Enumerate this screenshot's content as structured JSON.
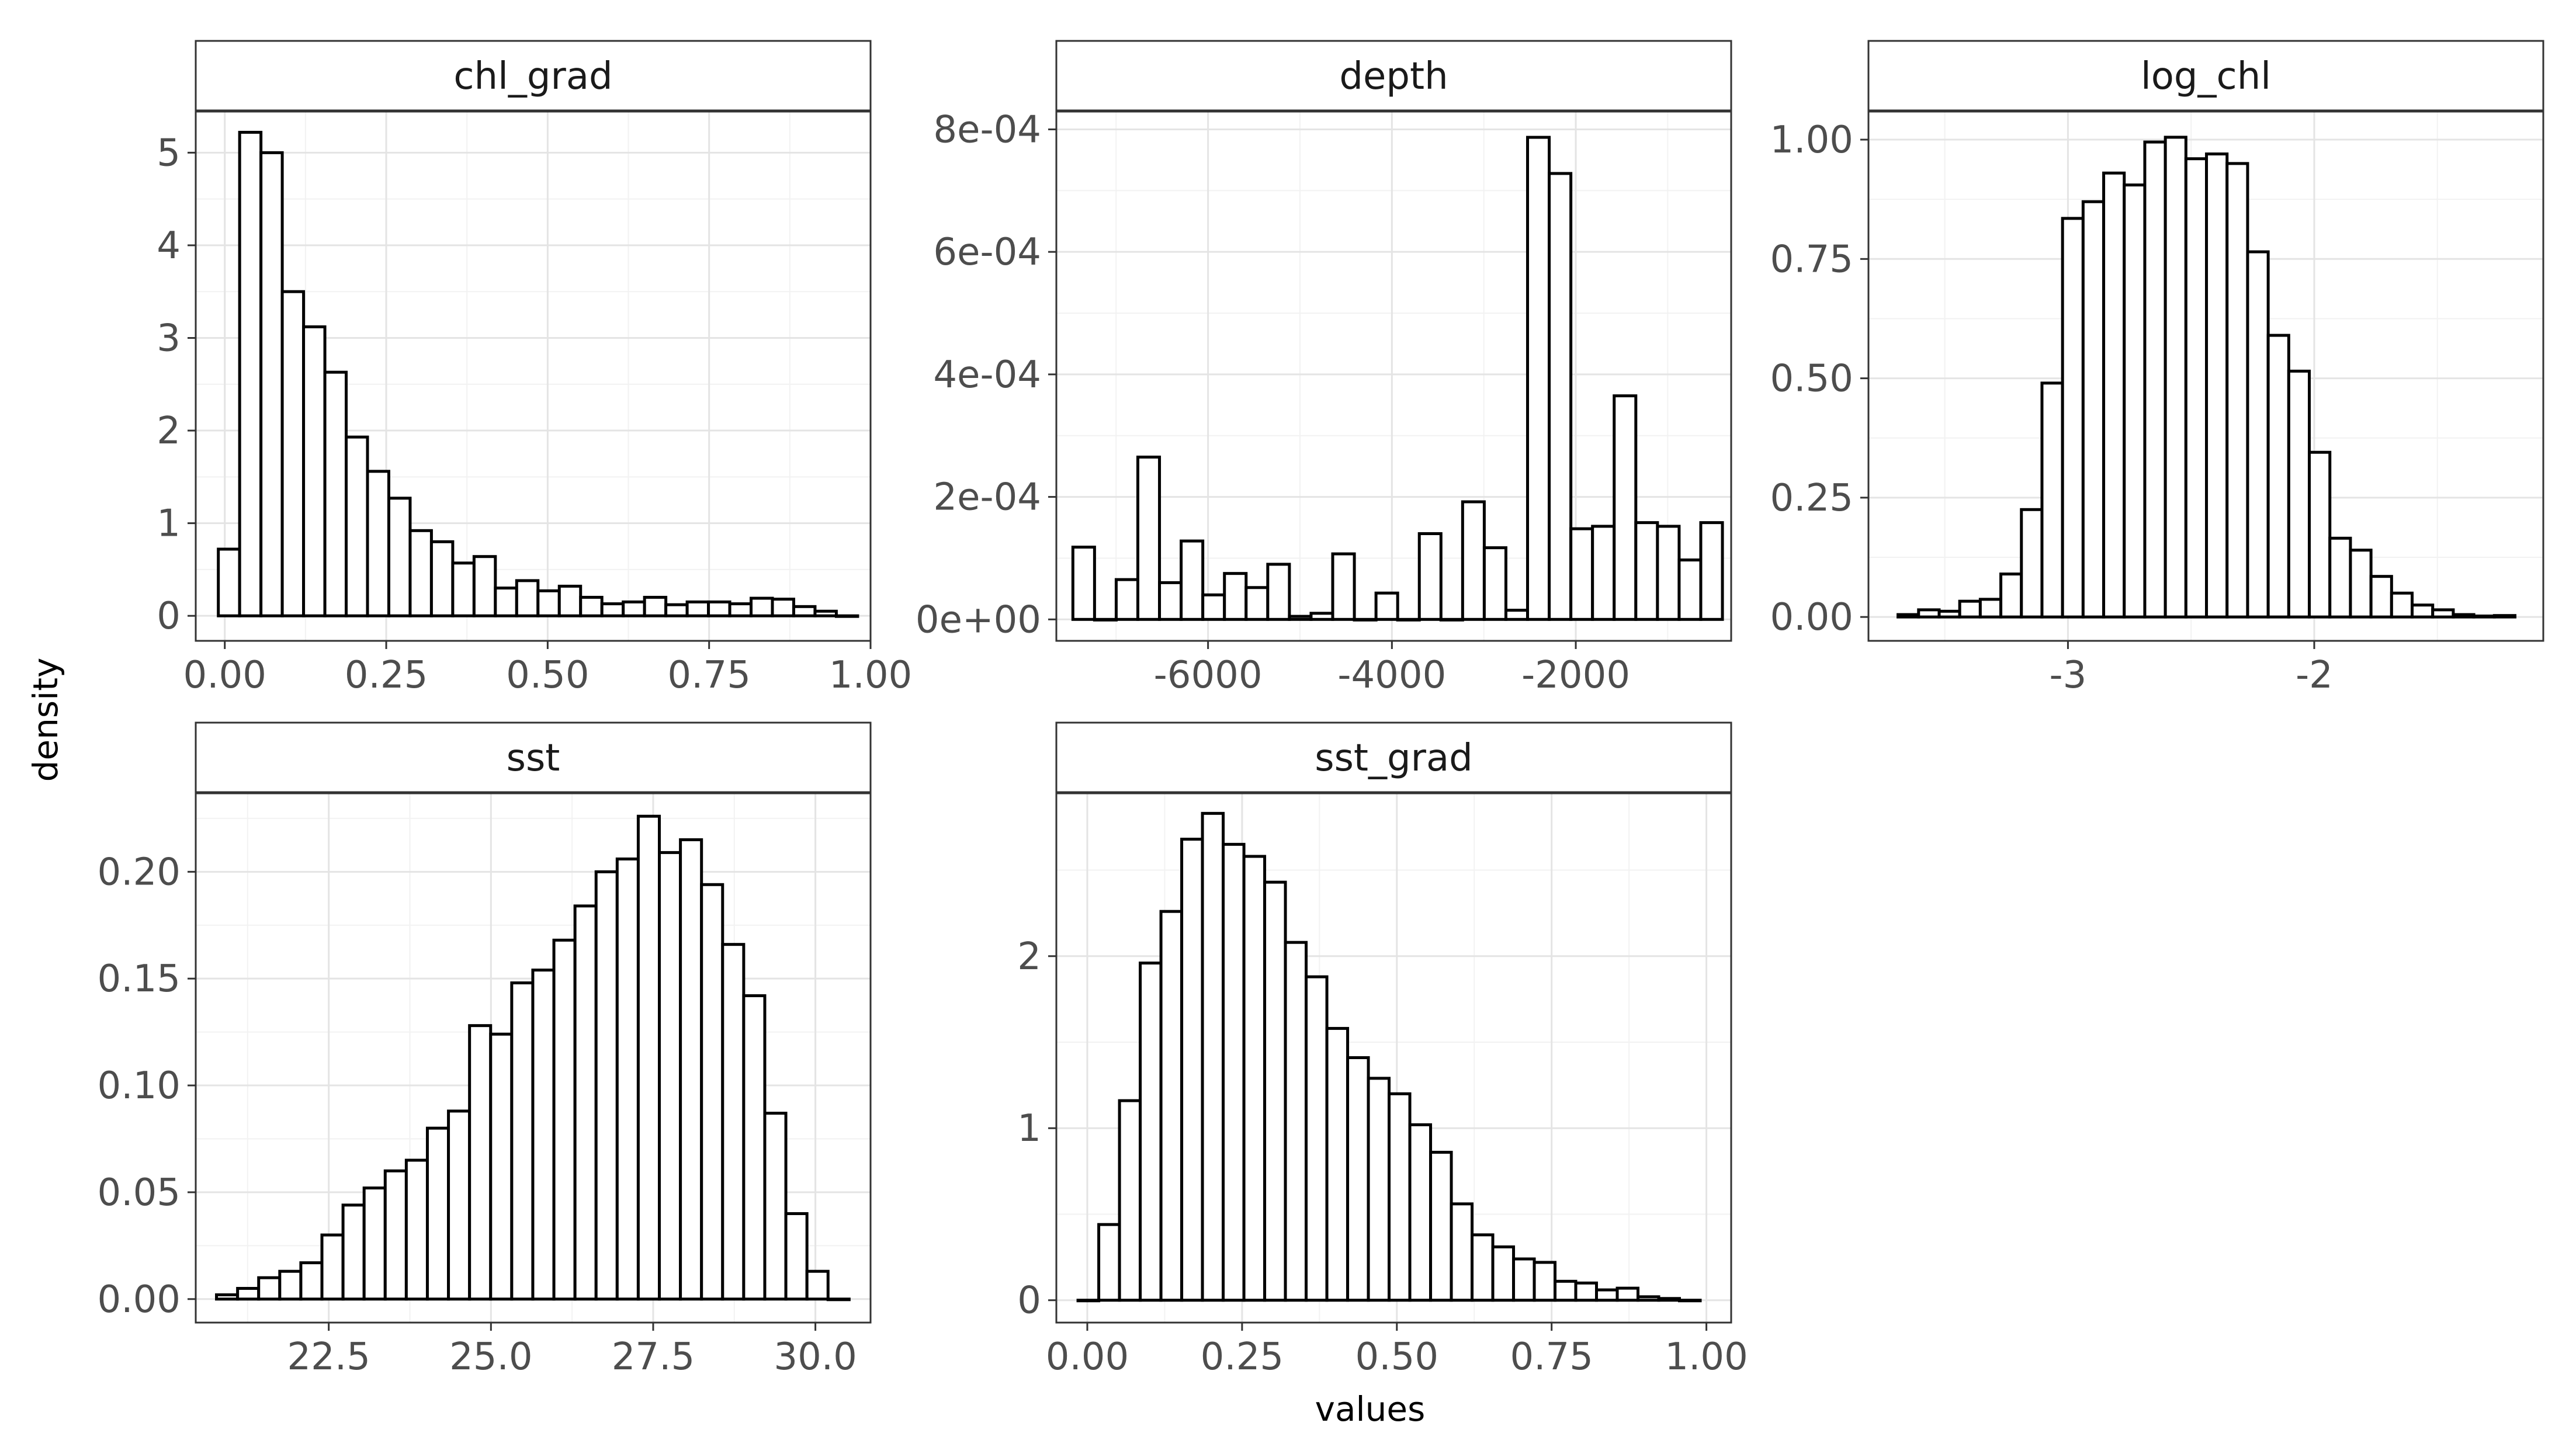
{
  "figure": {
    "ylabel": "density",
    "xlabel": "values"
  },
  "chart_data": [
    {
      "type": "bar",
      "title": "chl_grad",
      "xlabel": "values",
      "ylabel": "density",
      "xlim": [
        -0.045,
        1.0
      ],
      "ylim": [
        -0.27,
        5.45
      ],
      "bin_start": -0.01,
      "bin_width": 0.033,
      "values": [
        0.72,
        5.22,
        5.0,
        3.5,
        3.12,
        2.63,
        1.93,
        1.56,
        1.27,
        0.92,
        0.8,
        0.57,
        0.64,
        0.3,
        0.38,
        0.27,
        0.32,
        0.2,
        0.13,
        0.15,
        0.2,
        0.12,
        0.15,
        0.15,
        0.13,
        0.19,
        0.18,
        0.1,
        0.05,
        0.0
      ],
      "xticks": [
        0.0,
        0.25,
        0.5,
        0.75,
        1.0
      ],
      "xtick_labels": [
        "0.00",
        "0.25",
        "0.50",
        "0.75",
        "1.00"
      ],
      "yticks": [
        0,
        1,
        2,
        3,
        4,
        5
      ],
      "ytick_labels": [
        "0",
        "1",
        "2",
        "3",
        "4",
        "5"
      ]
    },
    {
      "type": "bar",
      "title": "depth",
      "xlabel": "values",
      "ylabel": "density",
      "xlim": [
        -7650,
        -310
      ],
      "ylim": [
        -3.5e-05,
        0.00083
      ],
      "bin_start": -7470,
      "bin_width": 235.5,
      "values": [
        0.000118,
        0.0,
        6.5e-05,
        0.000265,
        6e-05,
        0.000128,
        4e-05,
        7.5e-05,
        5.2e-05,
        9e-05,
        5e-06,
        1e-05,
        0.000107,
        0.0,
        4.3e-05,
        0.0,
        0.00014,
        0.0,
        0.000192,
        0.000117,
        1.5e-05,
        0.000787,
        0.000728,
        0.000148,
        0.000152,
        0.000365,
        0.000158,
        0.000152,
        9.7e-05,
        0.000158
      ],
      "xticks": [
        -6000,
        -4000,
        -2000
      ],
      "xtick_labels": [
        "-6000",
        "-4000",
        "-2000"
      ],
      "yticks": [
        0,
        0.0002,
        0.0004,
        0.0006,
        0.0008
      ],
      "ytick_labels": [
        "0e+00",
        "2e-04",
        "4e-04",
        "6e-04",
        "8e-04"
      ]
    },
    {
      "type": "bar",
      "title": "log_chl",
      "xlabel": "values",
      "ylabel": "density",
      "xlim": [
        -3.81,
        -1.07
      ],
      "ylim": [
        -0.05,
        1.06
      ],
      "bin_start": -3.69,
      "bin_width": 0.0835,
      "values": [
        0.005,
        0.015,
        0.012,
        0.033,
        0.037,
        0.09,
        0.225,
        0.49,
        0.835,
        0.87,
        0.93,
        0.905,
        0.995,
        1.005,
        0.96,
        0.97,
        0.95,
        0.765,
        0.59,
        0.515,
        0.345,
        0.165,
        0.14,
        0.085,
        0.05,
        0.025,
        0.015,
        0.005,
        0.002,
        0.003
      ],
      "xticks": [
        -3,
        -2
      ],
      "xtick_labels": [
        "-3",
        "-2"
      ],
      "yticks": [
        0.0,
        0.25,
        0.5,
        0.75,
        1.0
      ],
      "ytick_labels": [
        "0.00",
        "0.25",
        "0.50",
        "0.75",
        "1.00"
      ]
    },
    {
      "type": "bar",
      "title": "sst",
      "xlabel": "values",
      "ylabel": "density",
      "xlim": [
        20.45,
        30.85
      ],
      "ylim": [
        -0.011,
        0.237
      ],
      "bin_start": 20.77,
      "bin_width": 0.325,
      "values": [
        0.002,
        0.005,
        0.01,
        0.013,
        0.017,
        0.03,
        0.044,
        0.052,
        0.06,
        0.065,
        0.08,
        0.088,
        0.128,
        0.124,
        0.148,
        0.154,
        0.168,
        0.184,
        0.2,
        0.206,
        0.226,
        0.209,
        0.215,
        0.194,
        0.166,
        0.142,
        0.087,
        0.04,
        0.013,
        0.0
      ],
      "xticks": [
        22.5,
        25.0,
        27.5,
        30.0
      ],
      "xtick_labels": [
        "22.5",
        "25.0",
        "27.5",
        "30.0"
      ],
      "yticks": [
        0.0,
        0.05,
        0.1,
        0.15,
        0.2
      ],
      "ytick_labels": [
        "0.00",
        "0.05",
        "0.10",
        "0.15",
        "0.20"
      ]
    },
    {
      "type": "bar",
      "title": "sst_grad",
      "xlabel": "values",
      "ylabel": "density",
      "xlim": [
        -0.05,
        1.04
      ],
      "ylim": [
        -0.13,
        2.95
      ],
      "bin_start": -0.015,
      "bin_width": 0.0335,
      "values": [
        0.0,
        0.44,
        1.16,
        1.96,
        2.26,
        2.68,
        2.83,
        2.65,
        2.58,
        2.43,
        2.08,
        1.88,
        1.58,
        1.41,
        1.29,
        1.2,
        1.02,
        0.86,
        0.56,
        0.38,
        0.31,
        0.24,
        0.22,
        0.11,
        0.1,
        0.06,
        0.07,
        0.02,
        0.01,
        0.0
      ],
      "xticks": [
        0.0,
        0.25,
        0.5,
        0.75,
        1.0
      ],
      "xtick_labels": [
        "0.00",
        "0.25",
        "0.50",
        "0.75",
        "1.00"
      ],
      "yticks": [
        0,
        1,
        2
      ],
      "ytick_labels": [
        "0",
        "1",
        "2"
      ]
    }
  ]
}
